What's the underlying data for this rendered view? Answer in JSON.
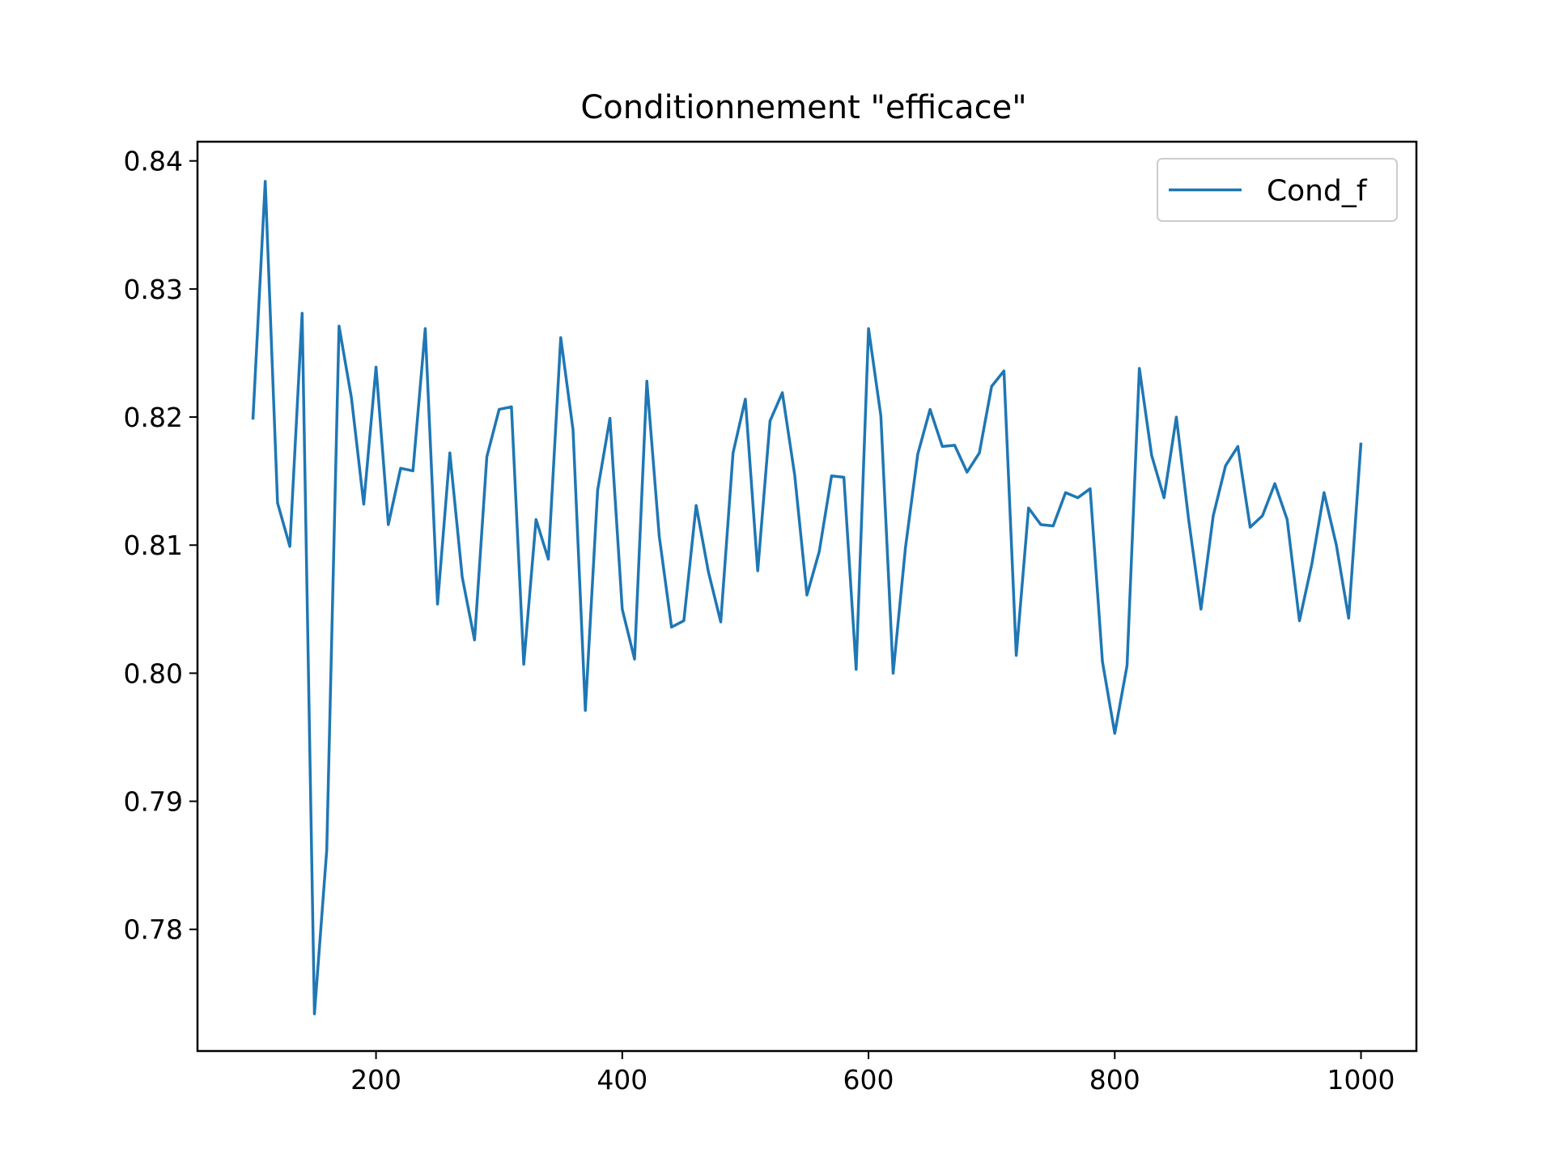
{
  "chart_data": {
    "type": "line",
    "title": "Conditionnement \"efficace\"",
    "xlabel": "",
    "ylabel": "",
    "xlim": [
      55,
      1045
    ],
    "ylim": [
      0.7705,
      0.8415
    ],
    "xticks": [
      200,
      400,
      600,
      800,
      1000
    ],
    "xtick_labels": [
      "200",
      "400",
      "600",
      "800",
      "1000"
    ],
    "yticks": [
      0.78,
      0.79,
      0.8,
      0.81,
      0.82,
      0.83,
      0.84
    ],
    "ytick_labels": [
      "0.78",
      "0.79",
      "0.80",
      "0.81",
      "0.82",
      "0.83",
      "0.84"
    ],
    "grid": false,
    "legend_position": "top-right",
    "series": [
      {
        "name": "Cond_f",
        "color": "#1f77b4",
        "x": [
          100,
          110,
          120,
          130,
          140,
          150,
          160,
          170,
          180,
          190,
          200,
          210,
          220,
          230,
          240,
          250,
          260,
          270,
          280,
          290,
          300,
          310,
          320,
          330,
          340,
          350,
          360,
          370,
          380,
          390,
          400,
          410,
          420,
          430,
          440,
          450,
          460,
          470,
          480,
          490,
          500,
          510,
          520,
          530,
          540,
          550,
          560,
          570,
          580,
          590,
          600,
          610,
          620,
          630,
          640,
          650,
          660,
          670,
          680,
          690,
          700,
          710,
          720,
          730,
          740,
          750,
          760,
          770,
          780,
          790,
          800,
          810,
          820,
          830,
          840,
          850,
          860,
          870,
          880,
          890,
          900,
          910,
          920,
          930,
          940,
          950,
          960,
          970,
          980,
          990,
          1000
        ],
        "y": [
          0.8198,
          0.8384,
          0.8133,
          0.8099,
          0.8281,
          0.7734,
          0.7862,
          0.8271,
          0.8215,
          0.8132,
          0.8239,
          0.8116,
          0.816,
          0.8158,
          0.8269,
          0.8054,
          0.8172,
          0.8075,
          0.8026,
          0.8169,
          0.8206,
          0.8208,
          0.8007,
          0.812,
          0.8089,
          0.8262,
          0.819,
          0.7971,
          0.8143,
          0.8199,
          0.805,
          0.8011,
          0.8228,
          0.8107,
          0.8036,
          0.8041,
          0.8131,
          0.8079,
          0.804,
          0.8172,
          0.8214,
          0.808,
          0.8197,
          0.8219,
          0.8155,
          0.8061,
          0.8095,
          0.8154,
          0.8153,
          0.8003,
          0.8269,
          0.8201,
          0.8,
          0.8098,
          0.8171,
          0.8206,
          0.8177,
          0.8178,
          0.8157,
          0.8172,
          0.8224,
          0.8236,
          0.8014,
          0.8129,
          0.8116,
          0.8115,
          0.8141,
          0.8137,
          0.8144,
          0.8009,
          0.7953,
          0.8006,
          0.8238,
          0.817,
          0.8137,
          0.82,
          0.812,
          0.805,
          0.8123,
          0.8162,
          0.8177,
          0.8114,
          0.8123,
          0.8148,
          0.812,
          0.8041,
          0.8085,
          0.8141,
          0.81,
          0.8043,
          0.818
        ]
      }
    ]
  }
}
